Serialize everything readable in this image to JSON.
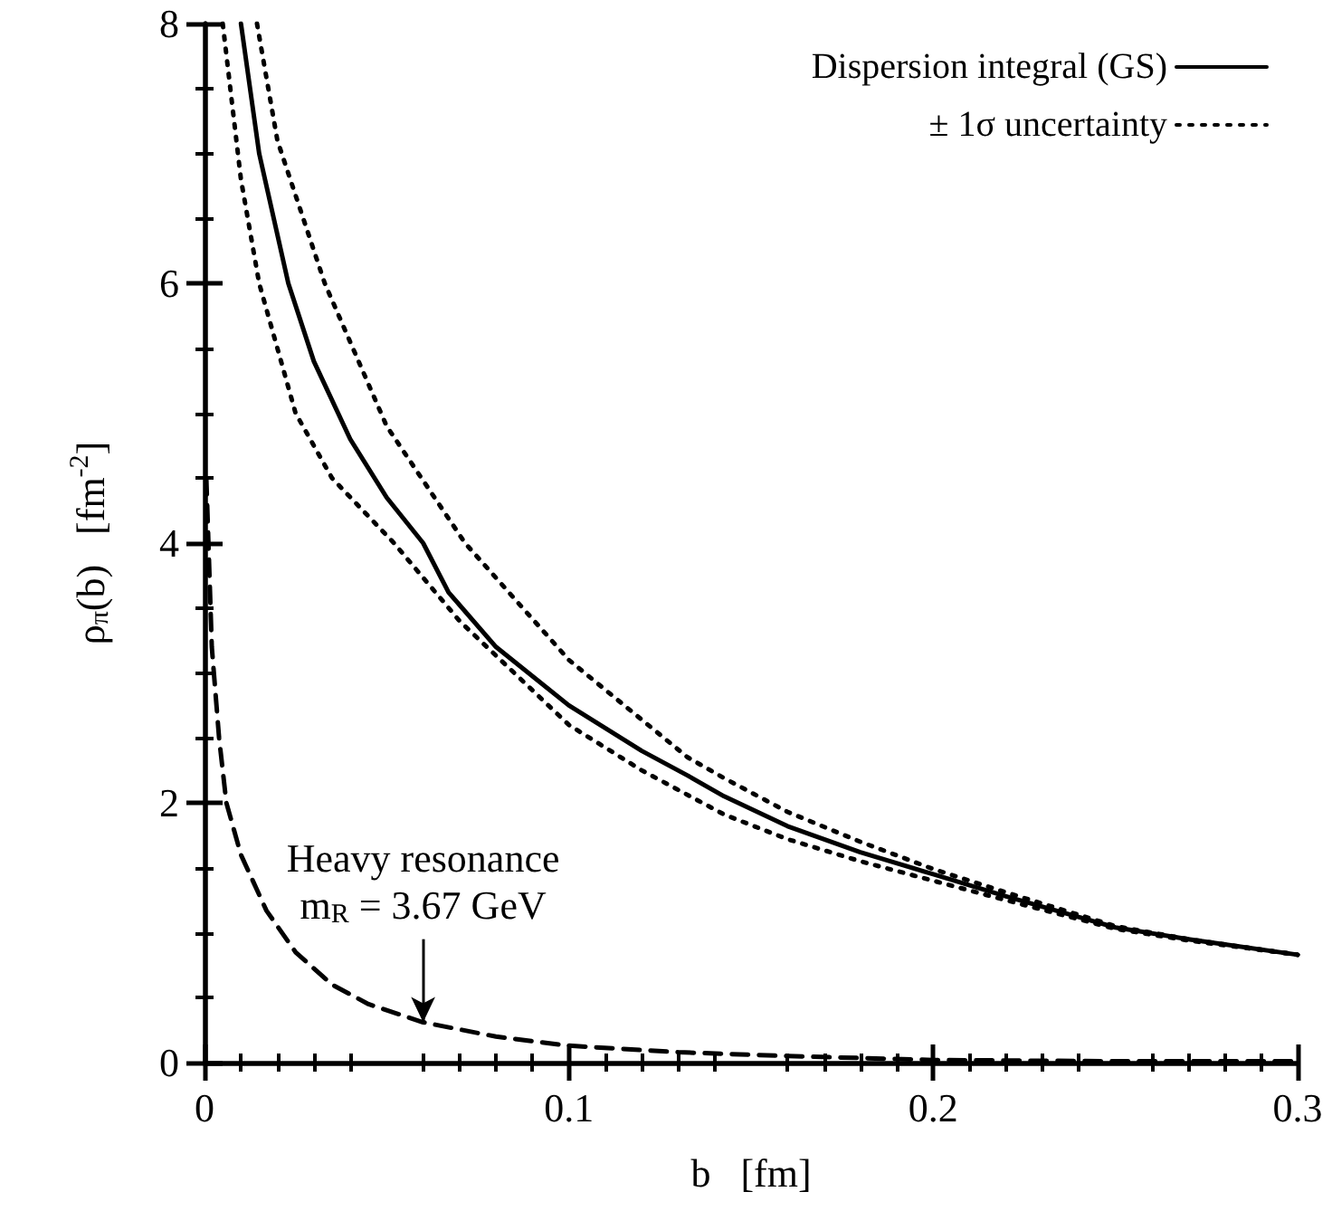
{
  "chart_data": {
    "type": "line",
    "xlabel": "b   [fm]",
    "ylabel": "ρ$_{π}$(b)   [fm$^{-2}$]",
    "xlim": [
      0,
      0.3
    ],
    "xticks": [
      0,
      0.1,
      0.2,
      0.3
    ],
    "ylim": [
      0,
      8
    ],
    "yticks": [
      0,
      2,
      4,
      6,
      8
    ],
    "grid": false,
    "legend": "top right",
    "marker": "none",
    "annotations": [
      {
        "text": "Heavy resonance\nm$_{R}$ = 3.67 GeV",
        "x": 0.06,
        "y": 0.31
      }
    ],
    "series": [
      {
        "name": "Dispersion integral (GS)",
        "color": "#000000",
        "line_style": "solid",
        "x": [
          0.01,
          0.015,
          0.023,
          0.03,
          0.04,
          0.05,
          0.06,
          0.067,
          0.08,
          0.1,
          0.12,
          0.1326,
          0.1426,
          0.16,
          0.18,
          0.2,
          0.22,
          0.25,
          0.27,
          0.3
        ],
        "values": [
          8.0,
          7.0,
          6.0,
          5.4,
          4.8,
          4.35,
          4.0,
          3.62,
          3.2,
          2.75,
          2.4,
          2.21,
          2.05,
          1.82,
          1.62,
          1.45,
          1.28,
          1.04,
          0.95,
          0.83
        ]
      },
      {
        "name": "± 1σ uncertainty",
        "color": "#000000",
        "line_style": "dotted",
        "x": [
          0.0144,
          0.02,
          0.033,
          0.05,
          0.0715,
          0.1,
          0.1326,
          0.1426,
          0.16,
          0.18,
          0.2,
          0.22,
          0.25,
          0.27,
          0.3
        ],
        "values": [
          8.0,
          7.1,
          6.0,
          4.9,
          4.0,
          3.1,
          2.35,
          2.19,
          1.93,
          1.7,
          1.49,
          1.31,
          1.05,
          0.95,
          0.83
        ]
      },
      {
        "color": "#000000",
        "line_style": "dotted",
        "x": [
          0.005,
          0.01,
          0.015,
          0.025,
          0.035,
          0.052,
          0.07,
          0.1,
          0.12,
          0.1426,
          0.16,
          0.18,
          0.2,
          0.22,
          0.25,
          0.27,
          0.3
        ],
        "values": [
          8.0,
          6.8,
          6.0,
          5.0,
          4.5,
          4.0,
          3.4,
          2.6,
          2.25,
          1.91,
          1.72,
          1.55,
          1.4,
          1.25,
          1.03,
          0.94,
          0.83
        ]
      },
      {
        "color": "#000000",
        "line_style": "dashed",
        "x": [
          0.0005,
          0.002,
          0.004,
          0.006,
          0.01,
          0.017,
          0.025,
          0.035,
          0.045,
          0.06,
          0.08,
          0.1,
          0.13,
          0.16,
          0.2,
          0.25,
          0.3
        ],
        "values": [
          4.5,
          3.2,
          2.5,
          2.0,
          1.6,
          1.17,
          0.85,
          0.6,
          0.45,
          0.31,
          0.2,
          0.13,
          0.08,
          0.05,
          0.02,
          0.01,
          0.01
        ]
      }
    ]
  }
}
